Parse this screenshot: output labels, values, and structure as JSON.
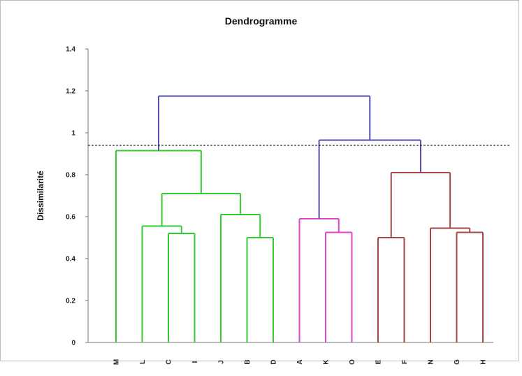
{
  "chart_data": {
    "type": "dendrogram",
    "title": "Dendrogramme",
    "ylabel": "Dissimilarité",
    "xlabel": "",
    "ylim": [
      0,
      1.4
    ],
    "yticks": [
      0,
      0.2,
      0.4,
      0.6,
      0.8,
      1,
      1.2,
      1.4
    ],
    "ytick_labels": [
      "0",
      "0.2",
      "0.4",
      "0.6",
      "0.8",
      "1",
      "1.2",
      "1.4"
    ],
    "leaves": [
      "M",
      "L",
      "C",
      "I",
      "J",
      "B",
      "D",
      "A",
      "K",
      "O",
      "E",
      "F",
      "N",
      "G",
      "H"
    ],
    "cut_line": 0.94,
    "colors": {
      "green": "#33cc33",
      "magenta": "#dd44cc",
      "brown": "#a84646",
      "blue": "#4f4fb0",
      "axis": "#777777",
      "cut": "#000000"
    },
    "merges": [
      {
        "left": "C",
        "right": "I",
        "height": 0.52,
        "color": "green"
      },
      {
        "left": "L",
        "right": "m1",
        "height": 0.555,
        "color": "green"
      },
      {
        "left": "B",
        "right": "D",
        "height": 0.5,
        "color": "green"
      },
      {
        "left": "J",
        "right": "m3",
        "height": 0.61,
        "color": "green"
      },
      {
        "left": "m2",
        "right": "m4",
        "height": 0.71,
        "color": "green"
      },
      {
        "left": "M",
        "right": "m5",
        "height": 0.915,
        "color": "green"
      },
      {
        "left": "K",
        "right": "O",
        "height": 0.525,
        "color": "magenta"
      },
      {
        "left": "A",
        "right": "m7",
        "height": 0.59,
        "color": "magenta"
      },
      {
        "left": "E",
        "right": "F",
        "height": 0.5,
        "color": "brown"
      },
      {
        "left": "G",
        "right": "H",
        "height": 0.525,
        "color": "brown"
      },
      {
        "left": "N",
        "right": "m10",
        "height": 0.545,
        "color": "brown"
      },
      {
        "left": "m9",
        "right": "m11",
        "height": 0.81,
        "color": "brown"
      },
      {
        "left": "m8",
        "right": "m12",
        "height": 0.965,
        "color": "blue"
      },
      {
        "left": "m6",
        "right": "m13",
        "height": 1.175,
        "color": "blue"
      }
    ]
  }
}
